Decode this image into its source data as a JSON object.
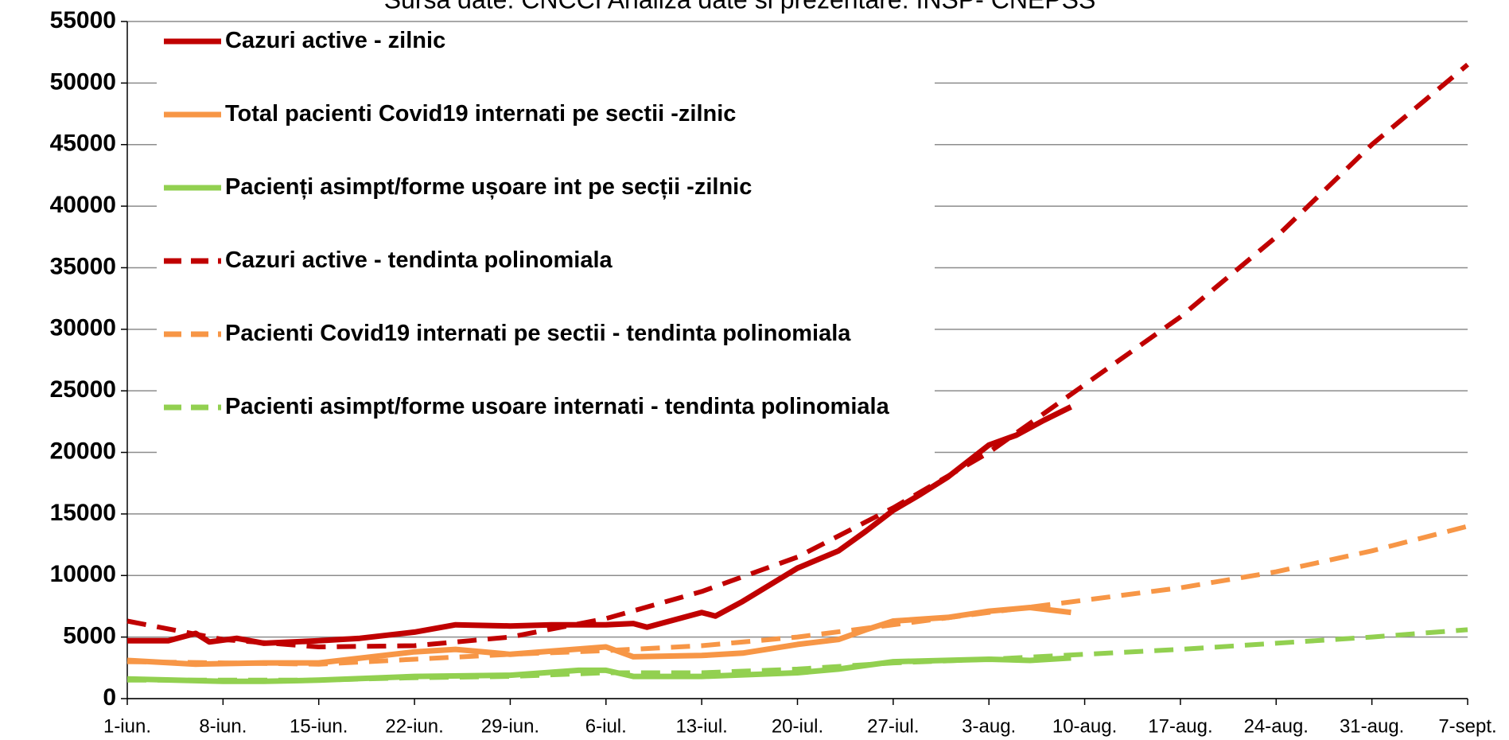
{
  "chart_data": {
    "type": "line",
    "subtitle": "Sursa date: CNCCI     Analiza date si prezentare: INSP- CNEPSS",
    "xlim": [
      0,
      98
    ],
    "xticks": [
      {
        "value": 0,
        "label": "1-iun."
      },
      {
        "value": 7,
        "label": "8-iun."
      },
      {
        "value": 14,
        "label": "15-iun."
      },
      {
        "value": 21,
        "label": "22-iun."
      },
      {
        "value": 28,
        "label": "29-iun."
      },
      {
        "value": 35,
        "label": "6-iul."
      },
      {
        "value": 42,
        "label": "13-iul."
      },
      {
        "value": 49,
        "label": "20-iul."
      },
      {
        "value": 56,
        "label": "27-iul."
      },
      {
        "value": 63,
        "label": "3-aug."
      },
      {
        "value": 70,
        "label": "10-aug."
      },
      {
        "value": 77,
        "label": "17-aug."
      },
      {
        "value": 84,
        "label": "24-aug."
      },
      {
        "value": 91,
        "label": "31-aug."
      },
      {
        "value": 98,
        "label": "7-sept."
      }
    ],
    "ylim": [
      0,
      55000
    ],
    "yticks": [
      0,
      5000,
      10000,
      15000,
      20000,
      25000,
      30000,
      35000,
      40000,
      45000,
      50000,
      55000
    ],
    "grid": true,
    "legend": "top-left",
    "series": [
      {
        "name": "Cazuri active - zilnic",
        "color": "#c00000",
        "style": "solid",
        "x": [
          0,
          3,
          5,
          6,
          8,
          10,
          14,
          17,
          21,
          24,
          28,
          31,
          35,
          37,
          38,
          42,
          43,
          45,
          49,
          52,
          54,
          56,
          58,
          60,
          63,
          65,
          67,
          69
        ],
        "values": [
          4700,
          4700,
          5300,
          4600,
          4900,
          4500,
          4700,
          4900,
          5400,
          6000,
          5900,
          6000,
          6000,
          6100,
          5800,
          7000,
          6700,
          7900,
          10600,
          12000,
          13600,
          15300,
          16600,
          18000,
          20600,
          21400,
          22600,
          23700
        ]
      },
      {
        "name": "Total pacienti Covid19 internati pe sectii -zilnic",
        "color": "#f79646",
        "style": "solid",
        "x": [
          0,
          5,
          10,
          14,
          21,
          24,
          28,
          35,
          37,
          42,
          45,
          49,
          52,
          54,
          56,
          60,
          63,
          66,
          69
        ],
        "values": [
          3100,
          2800,
          2900,
          2900,
          3800,
          4000,
          3600,
          4200,
          3400,
          3500,
          3700,
          4400,
          4800,
          5600,
          6300,
          6600,
          7100,
          7400,
          7000
        ]
      },
      {
        "name": "Pacienți asimpt/forme ușoare int pe secții -zilnic",
        "color": "#92d050",
        "style": "solid",
        "x": [
          0,
          7,
          10,
          14,
          21,
          28,
          33,
          35,
          37,
          42,
          49,
          52,
          56,
          63,
          66,
          69
        ],
        "values": [
          1600,
          1400,
          1400,
          1500,
          1800,
          1900,
          2300,
          2300,
          1800,
          1800,
          2100,
          2400,
          3000,
          3200,
          3100,
          3300
        ]
      },
      {
        "name": "Cazuri active - tendinta polinomiala",
        "color": "#c00000",
        "style": "dashed",
        "x": [
          0,
          7,
          14,
          21,
          28,
          35,
          42,
          49,
          56,
          63,
          70,
          77,
          84,
          91,
          98
        ],
        "values": [
          6300,
          4800,
          4200,
          4300,
          5000,
          6500,
          8700,
          11500,
          15500,
          20000,
          25500,
          31000,
          37500,
          45000,
          51500
        ]
      },
      {
        "name": "Pacienti Covid19 internati pe sectii - tendinta polinomiala",
        "color": "#f79646",
        "style": "dashed",
        "x": [
          0,
          7,
          14,
          21,
          28,
          35,
          42,
          49,
          56,
          63,
          70,
          77,
          84,
          91,
          98
        ],
        "values": [
          3000,
          2900,
          2800,
          3200,
          3600,
          3900,
          4300,
          5000,
          6000,
          7000,
          8000,
          9000,
          10300,
          12000,
          14000
        ]
      },
      {
        "name": "Pacienti asimpt/forme usoare internati - tendinta polinomiala",
        "color": "#92d050",
        "style": "dashed",
        "x": [
          0,
          7,
          14,
          21,
          28,
          35,
          42,
          49,
          56,
          63,
          70,
          77,
          84,
          91,
          98
        ],
        "values": [
          1500,
          1500,
          1500,
          1700,
          1800,
          2100,
          2100,
          2400,
          2900,
          3200,
          3600,
          4000,
          4500,
          5000,
          5600
        ]
      }
    ]
  }
}
